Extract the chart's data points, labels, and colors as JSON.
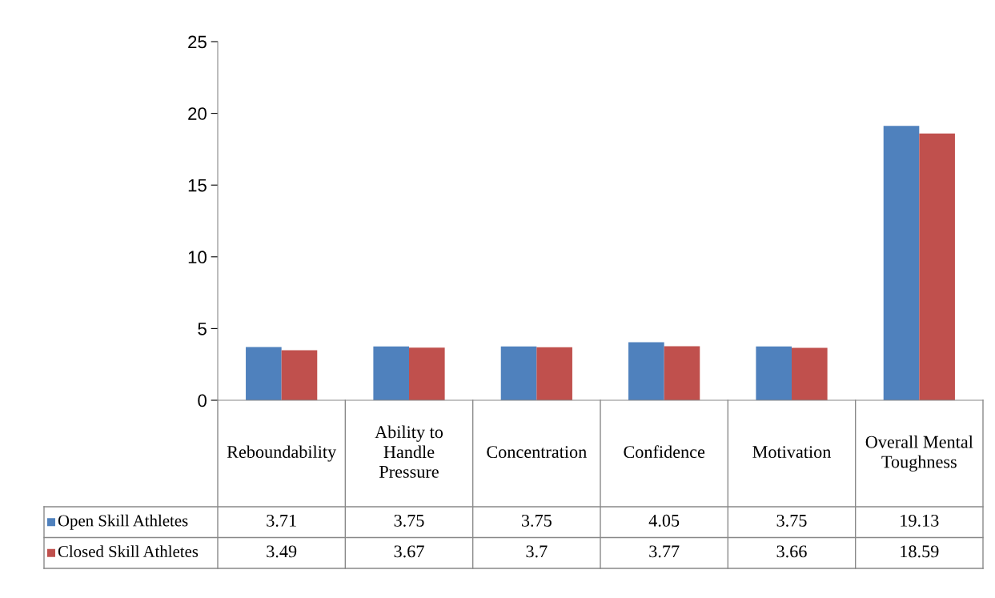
{
  "chart_data": {
    "type": "bar",
    "categories": [
      "Reboundability",
      "Ability to\nHandle\nPressure",
      "Concentration",
      "Confidence",
      "Motivation",
      "Overall Mental\nToughness"
    ],
    "series": [
      {
        "name": "Open Skill Athletes",
        "color": "#4f81bd",
        "values": [
          3.71,
          3.75,
          3.75,
          4.05,
          3.75,
          19.13
        ]
      },
      {
        "name": "Closed Skill Athletes",
        "color": "#c0504d",
        "values": [
          3.49,
          3.67,
          3.7,
          3.77,
          3.66,
          18.59
        ]
      }
    ],
    "ylim": [
      0,
      25
    ],
    "yticks": [
      0,
      5,
      10,
      15,
      20,
      25
    ],
    "data_labels": true,
    "legend": "bottom left"
  }
}
